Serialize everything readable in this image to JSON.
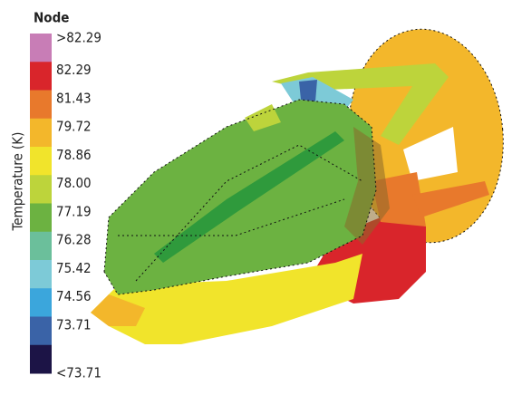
{
  "legend": {
    "title": "Node",
    "axis_label": "Temperature (K)",
    "items": [
      {
        "label": ">82.29",
        "color": "#c87db6"
      },
      {
        "label": "82.29",
        "color": "#d9252b"
      },
      {
        "label": "81.43",
        "color": "#e8792c"
      },
      {
        "label": "79.72",
        "color": "#f3b72b"
      },
      {
        "label": "78.86",
        "color": "#f1e42b"
      },
      {
        "label": "78.00",
        "color": "#bdd43b"
      },
      {
        "label": "77.19",
        "color": "#6cb241"
      },
      {
        "label": "76.28",
        "color": "#6bbf9b"
      },
      {
        "label": "75.42",
        "color": "#7dcad7"
      },
      {
        "label": "74.56",
        "color": "#3ba6dc"
      },
      {
        "label": "73.71",
        "color": "#3a63a7"
      },
      {
        "label": "<73.71",
        "color": "#1c1446"
      }
    ]
  }
}
